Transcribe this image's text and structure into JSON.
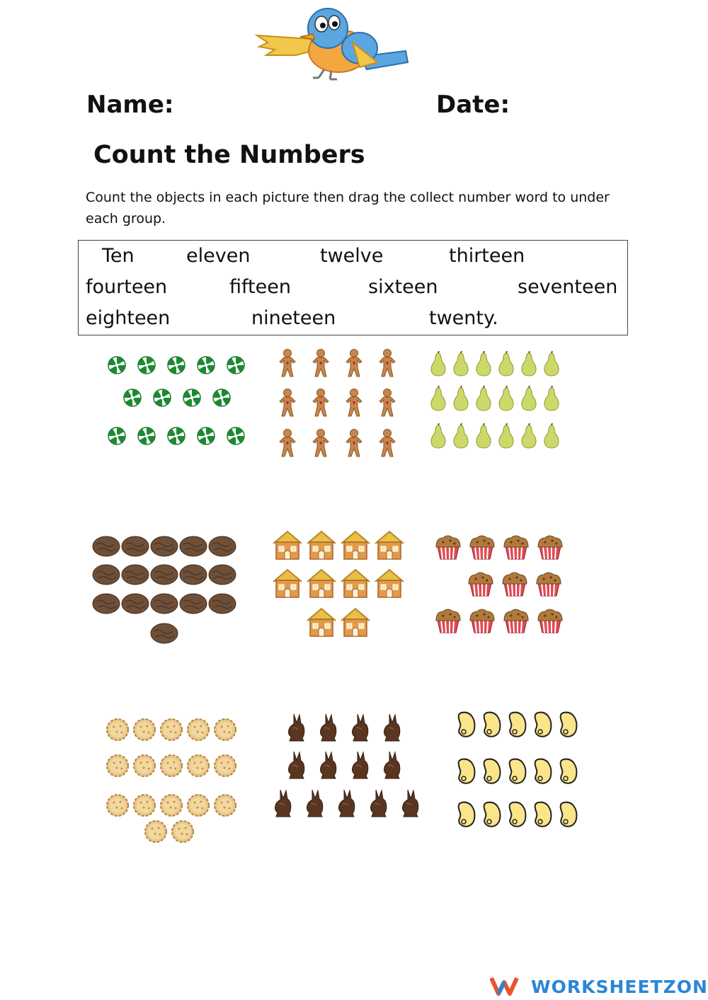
{
  "header": {
    "name_label": "Name:",
    "date_label": "Date:"
  },
  "title": "Count the Numbers",
  "instructions": "Count the objects in each picture then drag the collect number word to under each group.",
  "word_bank": [
    "Ten",
    "eleven",
    "twelve",
    "thirteen",
    "fourteen",
    "fifteen",
    "sixteen",
    "seventeen",
    "eighteen",
    "nineteen",
    "twenty."
  ],
  "groups": [
    {
      "object": "peppermint-candy",
      "rows": [
        5,
        4,
        5
      ]
    },
    {
      "object": "gingerbread-man",
      "rows": [
        4,
        4,
        4
      ]
    },
    {
      "object": "pear",
      "rows": [
        6,
        6,
        6
      ]
    },
    {
      "object": "walnut",
      "rows": [
        5,
        5,
        5,
        1
      ]
    },
    {
      "object": "gingerbread-house",
      "rows": [
        4,
        4,
        2
      ]
    },
    {
      "object": "cupcake",
      "rows": [
        4,
        3,
        4
      ]
    },
    {
      "object": "cookie",
      "rows": [
        5,
        5,
        5,
        2
      ]
    },
    {
      "object": "chocolate-bunny",
      "rows": [
        4,
        4,
        5
      ]
    },
    {
      "object": "bean",
      "rows": [
        5,
        5,
        5
      ]
    }
  ],
  "footer": {
    "logo_text": "WORKSHEETZONE",
    "brand_color": "#2a86d6",
    "accent_color": "#e8542e"
  }
}
